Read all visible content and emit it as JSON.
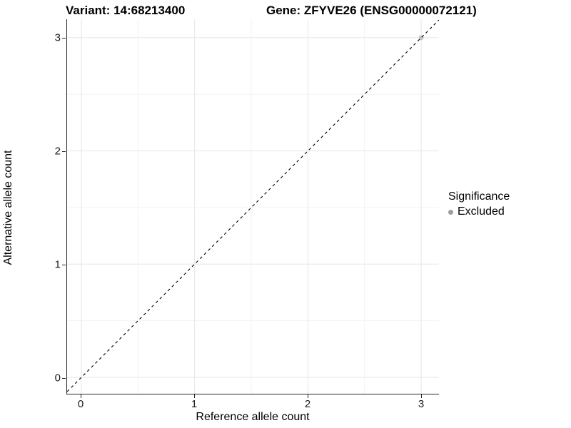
{
  "title": {
    "variant": "Variant: 14:68213400",
    "gene": "Gene: ZFYVE26 (ENSG00000072121)"
  },
  "legend": {
    "title": "Significance",
    "items": [
      {
        "label": "Excluded",
        "color": "#9e9e9e"
      }
    ]
  },
  "colors": {
    "grid_major": "#e6e6e6",
    "grid_minor": "#f3f3f3",
    "axis_line": "#262626",
    "reference_line": "#000000",
    "point": "#9e9e9e",
    "background": "#ffffff"
  },
  "chart_data": {
    "type": "scatter",
    "title": "Variant: 14:68213400   Gene: ZFYVE26 (ENSG00000072121)",
    "xlabel": "Reference allele count",
    "ylabel": "Alternative allele count",
    "xlim": [
      -0.126,
      3.157
    ],
    "ylim": [
      -0.145,
      3.163
    ],
    "x_ticks": [
      0,
      1,
      2,
      3
    ],
    "y_ticks": [
      0,
      1,
      2,
      3
    ],
    "x_minor": [
      0.5,
      1.5,
      2.5
    ],
    "y_minor": [
      0.5,
      1.5,
      2.5
    ],
    "grid": true,
    "legend_position": "right",
    "reference_line": {
      "type": "identity",
      "slope": 1,
      "intercept": 0,
      "style": "dashed",
      "color": "#000000"
    },
    "series": [
      {
        "name": "Excluded",
        "color": "#9e9e9e",
        "points": [
          {
            "x": 3,
            "y": 3
          }
        ]
      }
    ]
  }
}
